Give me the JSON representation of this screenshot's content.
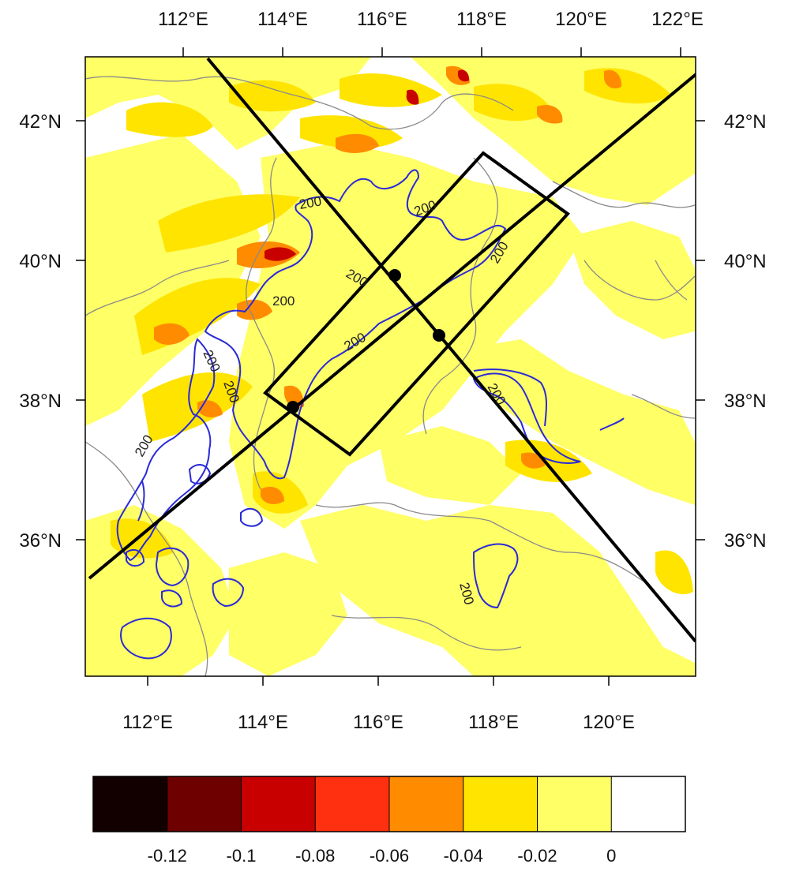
{
  "map": {
    "top_lon_labels": [
      "112°E",
      "114°E",
      "116°E",
      "118°E",
      "120°E",
      "122°E"
    ],
    "bottom_lon_labels": [
      "112°E",
      "114°E",
      "116°E",
      "118°E",
      "120°E"
    ],
    "lat_labels": [
      "42°N",
      "40°N",
      "38°N",
      "36°N"
    ],
    "contour_level_label": "200",
    "contour_color": "#2a2ad8",
    "marker_color": "#000000"
  },
  "colorbar": {
    "colors": [
      "#120000",
      "#6e0000",
      "#c80000",
      "#ff3010",
      "#ff8c00",
      "#ffe400",
      "#ffff66",
      "#ffffff"
    ],
    "labels": [
      "-0.12",
      "-0.1",
      "-0.08",
      "-0.06",
      "-0.04",
      "-0.02",
      "0"
    ]
  }
}
